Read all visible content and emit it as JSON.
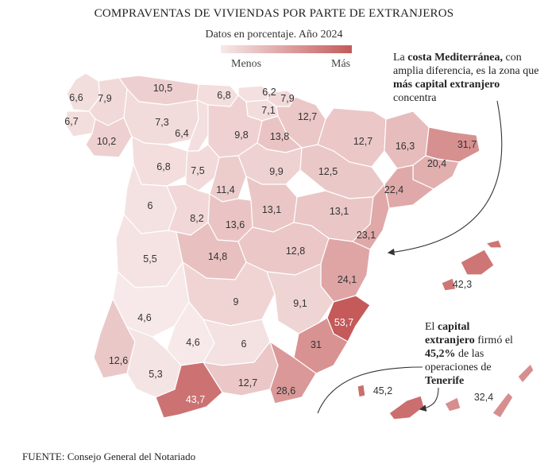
{
  "title": "COMPRAVENTAS DE VIVIENDAS POR PARTE DE EXTRANJEROS",
  "subtitle": "Datos en porcentaje. Año 2024",
  "legend": {
    "min_label": "Menos",
    "max_label": "Más",
    "color_min": "#f7e9e9",
    "color_max": "#c45a5a"
  },
  "annotations": {
    "mediterranean": {
      "t1": "La ",
      "b1": "costa Mediterránea,",
      "t2": " con amplia diferencia, es la zona que ",
      "b2": "más capital extranjero",
      "t3": " concentra"
    },
    "tenerife": {
      "t1": "El ",
      "b1": "capital extranjero",
      "t2": " firmó el ",
      "b2": "45,2%",
      "t3": " de las operaciones de ",
      "b3": "Tenerife"
    }
  },
  "source": {
    "label": "FUENTE:",
    "text": " Consejo General del Notariado"
  },
  "regions": [
    {
      "name": "A Coruña",
      "value": "6,6"
    },
    {
      "name": "Lugo",
      "value": "7,9"
    },
    {
      "name": "Pontevedra",
      "value": "6,7"
    },
    {
      "name": "Ourense",
      "value": "10,2"
    },
    {
      "name": "Asturias",
      "value": "10,5"
    },
    {
      "name": "Cantabria",
      "value": "6,8"
    },
    {
      "name": "Bizkaia",
      "value": "6,2"
    },
    {
      "name": "Gipuzkoa",
      "value": "7,9"
    },
    {
      "name": "Araba",
      "value": "7,1"
    },
    {
      "name": "Navarra",
      "value": "12,7"
    },
    {
      "name": "León",
      "value": "7,3"
    },
    {
      "name": "Palencia",
      "value": "6,4"
    },
    {
      "name": "Burgos",
      "value": "9,8"
    },
    {
      "name": "La Rioja",
      "value": "13,8"
    },
    {
      "name": "Huesca",
      "value": "12,7"
    },
    {
      "name": "Lleida",
      "value": "16,3"
    },
    {
      "name": "Girona",
      "value": "31,7"
    },
    {
      "name": "Barcelona",
      "value": "20,4"
    },
    {
      "name": "Tarragona",
      "value": "22,4"
    },
    {
      "name": "Zamora",
      "value": "6,8"
    },
    {
      "name": "Valladolid",
      "value": "7,5"
    },
    {
      "name": "Soria",
      "value": "9,9"
    },
    {
      "name": "Zaragoza",
      "value": "12,5"
    },
    {
      "name": "Segovia",
      "value": "11,4"
    },
    {
      "name": "Salamanca",
      "value": "6"
    },
    {
      "name": "Ávila",
      "value": "8,2"
    },
    {
      "name": "Guadalajara",
      "value": "13,1"
    },
    {
      "name": "Teruel",
      "value": "13,1"
    },
    {
      "name": "Madrid",
      "value": "13,6"
    },
    {
      "name": "Castellón",
      "value": "23,1"
    },
    {
      "name": "Cáceres",
      "value": "5,5"
    },
    {
      "name": "Toledo",
      "value": "14,8"
    },
    {
      "name": "Cuenca",
      "value": "12,8"
    },
    {
      "name": "Valencia",
      "value": "24,1"
    },
    {
      "name": "Baleares",
      "value": "42,3"
    },
    {
      "name": "Ciudad Real",
      "value": "9"
    },
    {
      "name": "Albacete",
      "value": "9,1"
    },
    {
      "name": "Badajoz",
      "value": "4,6"
    },
    {
      "name": "Alicante",
      "value": "53,7"
    },
    {
      "name": "Córdoba",
      "value": "4,6"
    },
    {
      "name": "Jaén",
      "value": "6"
    },
    {
      "name": "Murcia",
      "value": "31"
    },
    {
      "name": "Huelva",
      "value": "12,6"
    },
    {
      "name": "Sevilla",
      "value": "5,3"
    },
    {
      "name": "Granada",
      "value": "12,7"
    },
    {
      "name": "Almería",
      "value": "28,6"
    },
    {
      "name": "Málaga",
      "value": "43,7"
    },
    {
      "name": "Santa Cruz de Tenerife",
      "value": "45,2"
    },
    {
      "name": "Las Palmas",
      "value": "32,4"
    }
  ]
}
